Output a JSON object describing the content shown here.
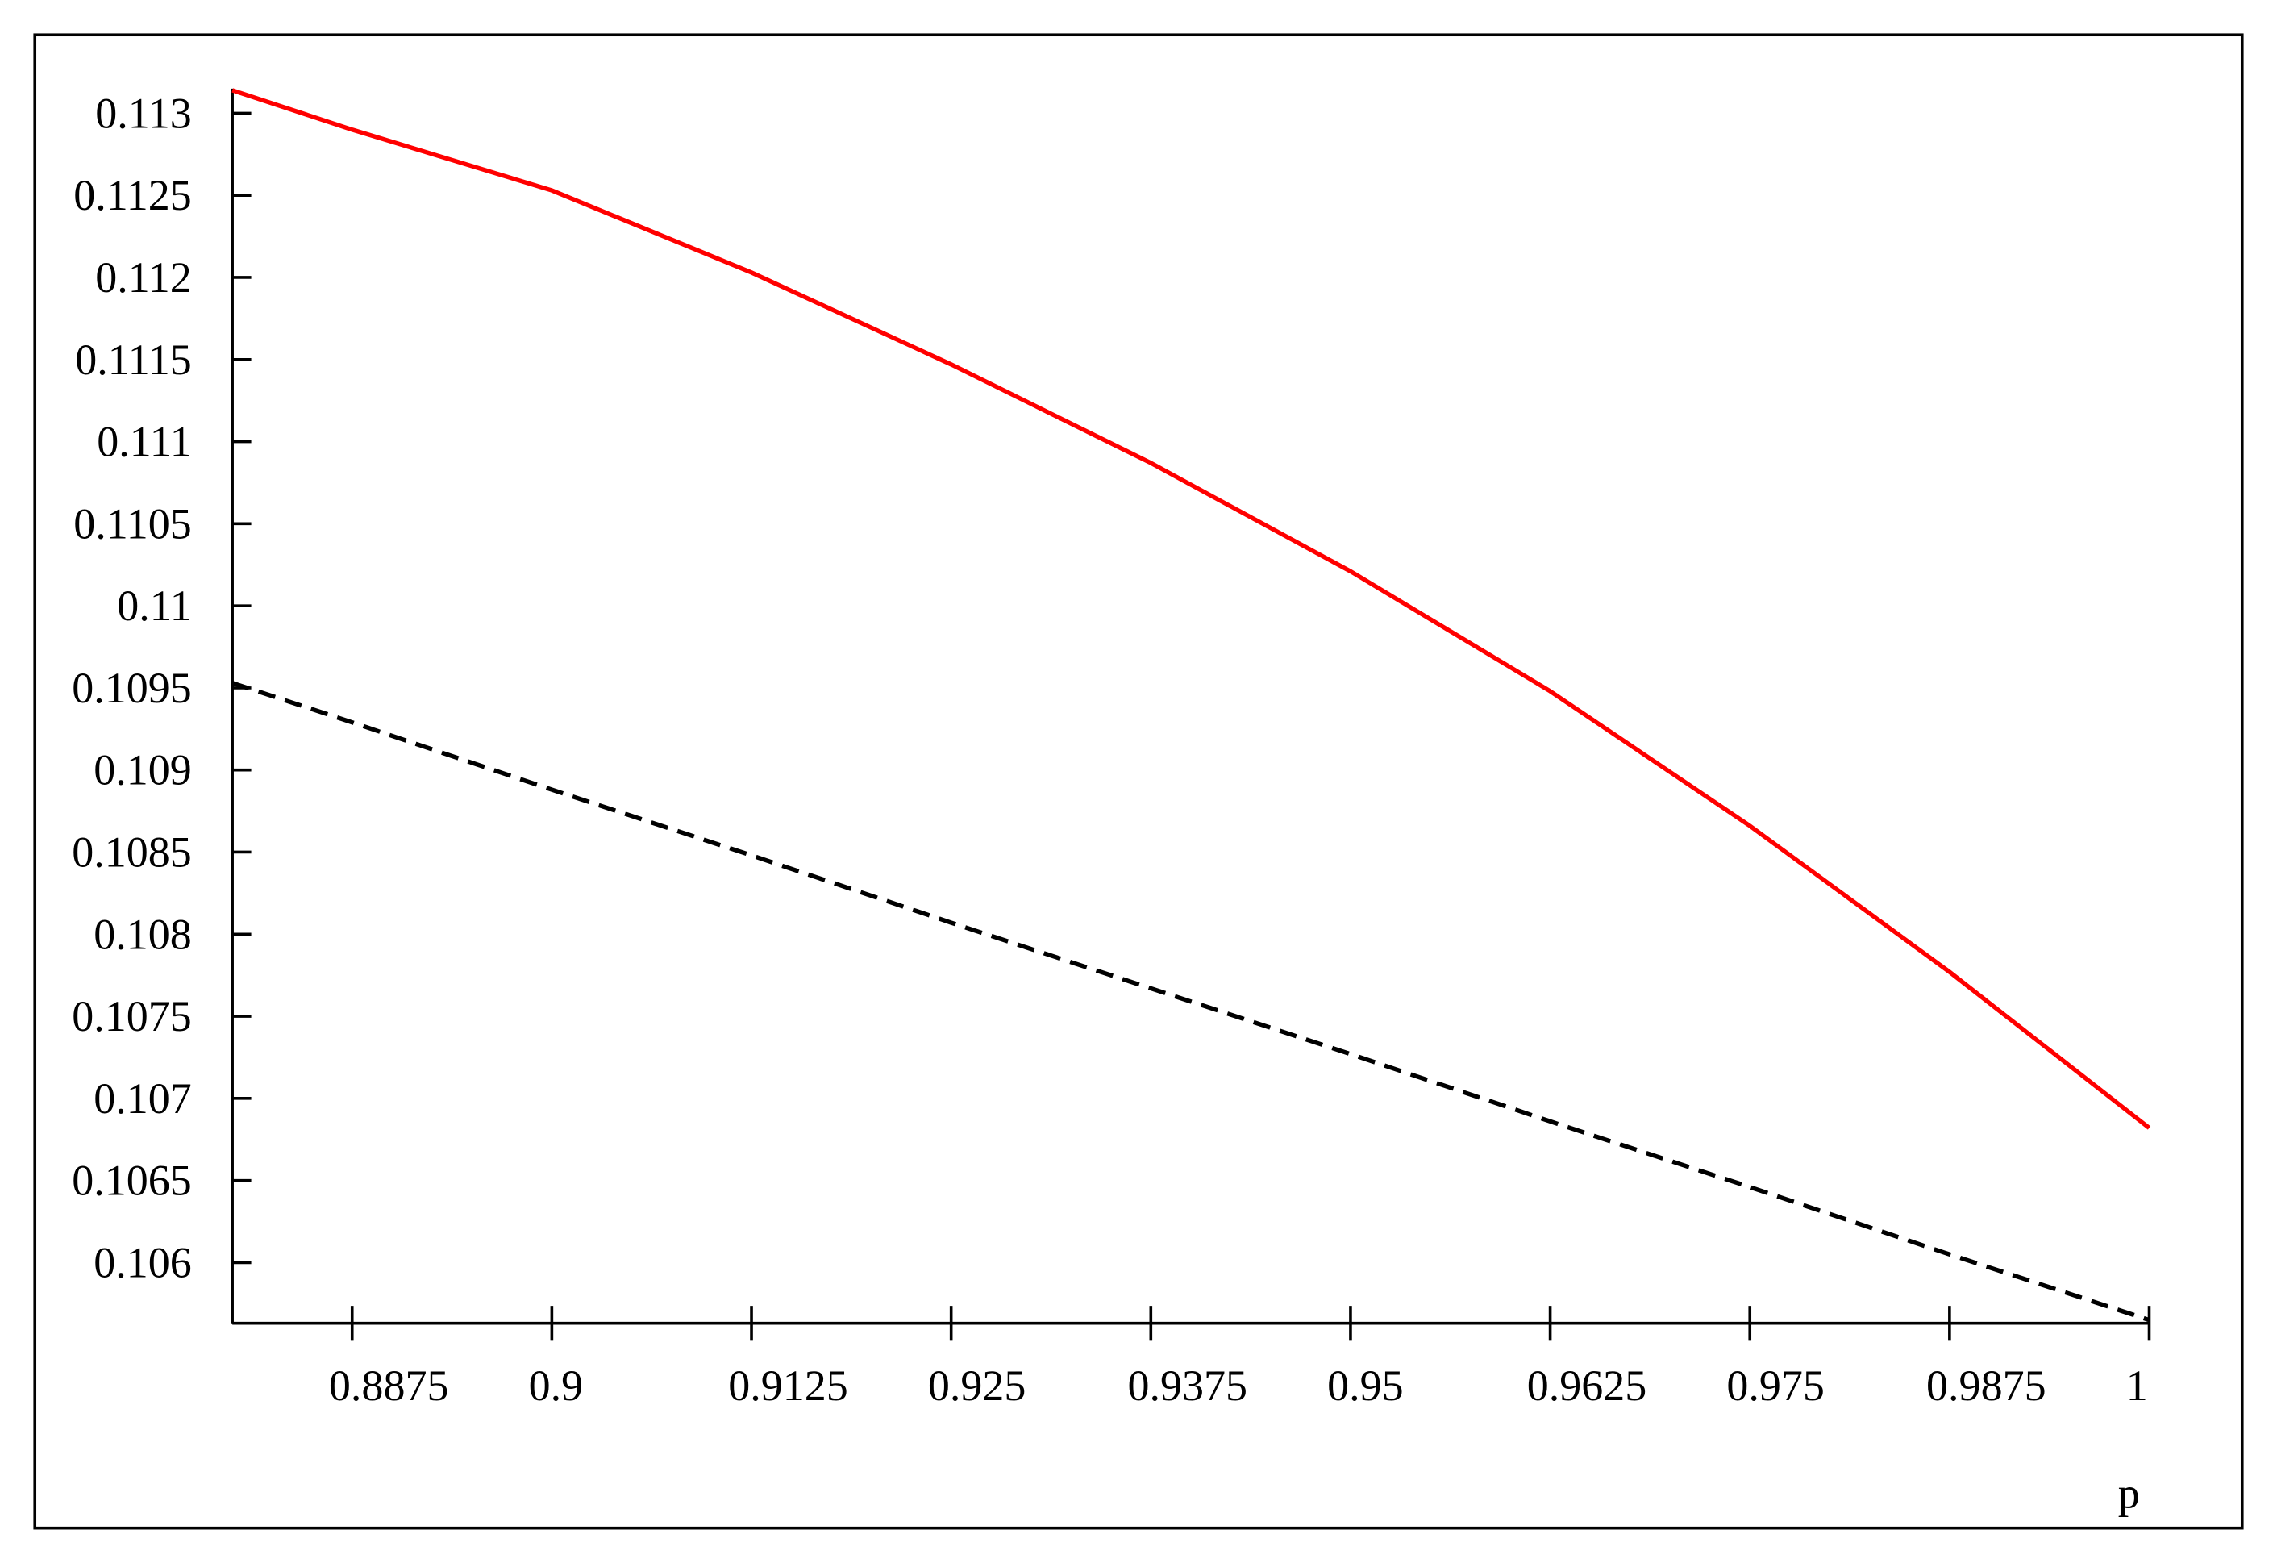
{
  "chart_data": {
    "type": "line",
    "xlabel": "p",
    "x": [
      0.88,
      0.8875,
      0.9,
      0.9125,
      0.925,
      0.9375,
      0.95,
      0.9625,
      0.975,
      0.9875,
      1
    ],
    "series": [
      {
        "color": "#ff0000",
        "linestyle": "solid",
        "values": [
          0.11314,
          0.1129,
          0.11253,
          0.11203,
          0.11147,
          0.11087,
          0.11021,
          0.10948,
          0.10866,
          0.10777,
          0.10682
        ]
      },
      {
        "color": "#000000",
        "linestyle": "dashed",
        "values": [
          0.10953,
          0.10929,
          0.10888,
          0.10848,
          0.10807,
          0.10767,
          0.10727,
          0.10686,
          0.10646,
          0.10605,
          0.10565
        ]
      }
    ],
    "xlim": [
      0.88,
      1
    ],
    "ylim": [
      0.10563,
      0.11315
    ],
    "xticks": [
      0.8875,
      0.9,
      0.9125,
      0.925,
      0.9375,
      0.95,
      0.9625,
      0.975,
      0.9875,
      1
    ],
    "yticks": [
      0.106,
      0.1065,
      0.107,
      0.1075,
      0.108,
      0.1085,
      0.109,
      0.1095,
      0.11,
      0.1105,
      0.111,
      0.1115,
      0.112,
      0.1125,
      0.113
    ],
    "grid": false
  }
}
